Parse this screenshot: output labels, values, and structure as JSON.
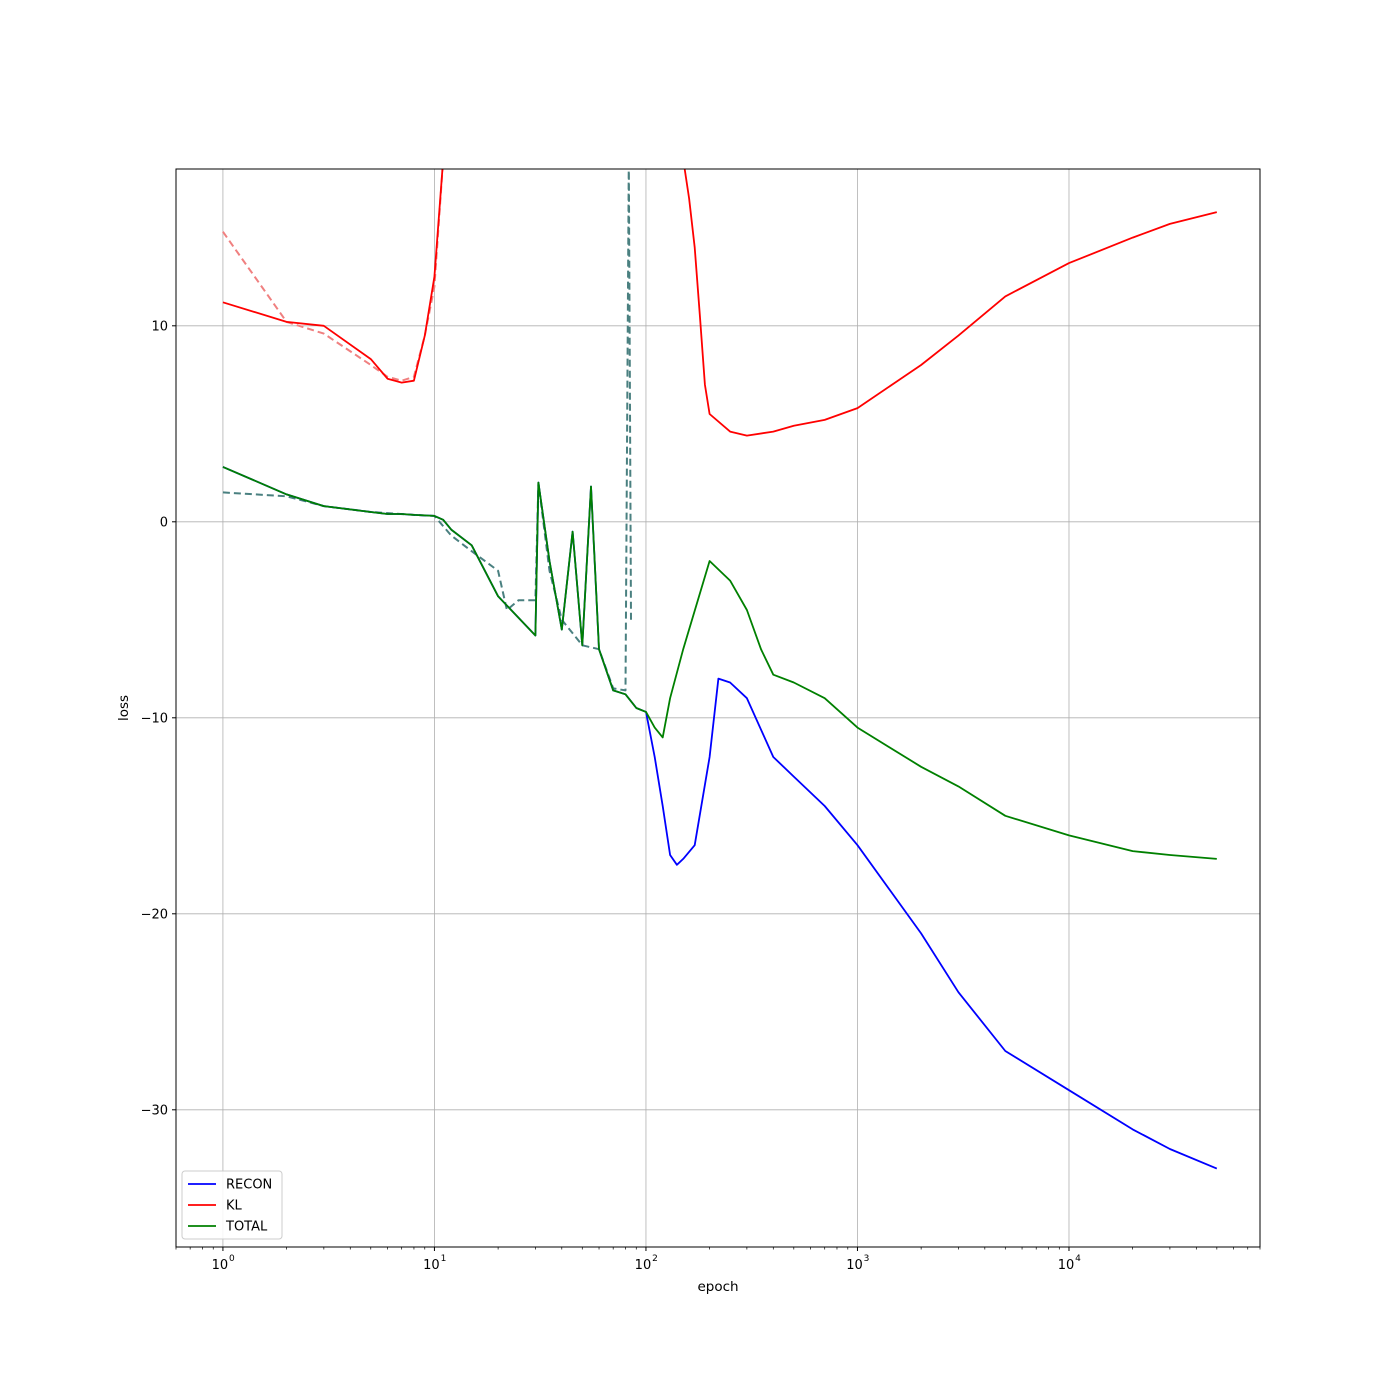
{
  "chart_data": {
    "type": "line",
    "xscale": "log",
    "xlabel": "epoch",
    "ylabel": "loss",
    "xlim": [
      0.6,
      80000
    ],
    "ylim": [
      -37,
      18
    ],
    "grid": true,
    "legend_location": "lower-left",
    "x_ticks": [
      1,
      10,
      100,
      1000,
      10000
    ],
    "x_tick_labels": [
      "10",
      "10",
      "10",
      "10",
      "10"
    ],
    "x_tick_exponents": [
      "0",
      "1",
      "2",
      "3",
      "4"
    ],
    "y_ticks": [
      10,
      0,
      -10,
      -20,
      -30
    ],
    "y_tick_labels": [
      "10",
      "0",
      "−10",
      "−20",
      "−30"
    ],
    "series": [
      {
        "name": "RECON",
        "color": "#0000ff",
        "style": "solid",
        "x": [
          1,
          2,
          3,
          5,
          6,
          7,
          8,
          10,
          11,
          12,
          15,
          20,
          30,
          31,
          35,
          40,
          45,
          50,
          55,
          60,
          70,
          80,
          90,
          100,
          110,
          120,
          130,
          140,
          150,
          170,
          200,
          220,
          250,
          300,
          400,
          500,
          700,
          1000,
          2000,
          3000,
          5000,
          10000,
          20000,
          30000,
          50000
        ],
        "y": [
          2.8,
          1.4,
          0.8,
          0.5,
          0.4,
          0.4,
          0.35,
          0.3,
          0.1,
          -0.4,
          -1.2,
          -3.8,
          -5.8,
          2.0,
          -2.0,
          -5.5,
          -0.5,
          -6.3,
          1.8,
          -6.5,
          -8.6,
          -8.8,
          -9.5,
          -9.7,
          -12.0,
          -14.5,
          -17.0,
          -17.5,
          -17.2,
          -16.5,
          -12.0,
          -8.0,
          -8.2,
          -9.0,
          -12.0,
          -13.0,
          -14.5,
          -16.5,
          -21.0,
          -24.0,
          -27.0,
          -29.0,
          -31.0,
          -32.0,
          -33.0
        ]
      },
      {
        "name": "KL",
        "color": "#ff0000",
        "style": "solid",
        "x": [
          1,
          2,
          3,
          5,
          6,
          7,
          8,
          9,
          10,
          11,
          150,
          160,
          170,
          180,
          190,
          200,
          250,
          300,
          400,
          500,
          700,
          1000,
          2000,
          3000,
          5000,
          10000,
          20000,
          30000,
          50000
        ],
        "y": [
          11.2,
          10.2,
          10.0,
          8.3,
          7.3,
          7.1,
          7.2,
          9.5,
          12.5,
          18.5,
          18.5,
          16.5,
          14.0,
          10.5,
          7.0,
          5.5,
          4.6,
          4.4,
          4.6,
          4.9,
          5.2,
          5.8,
          8.0,
          9.5,
          11.5,
          13.2,
          14.5,
          15.2,
          15.8
        ]
      },
      {
        "name": "TOTAL",
        "color": "#008000",
        "style": "solid",
        "x": [
          1,
          2,
          3,
          5,
          6,
          7,
          8,
          10,
          11,
          12,
          15,
          20,
          30,
          31,
          35,
          40,
          45,
          50,
          55,
          60,
          70,
          80,
          90,
          100,
          110,
          120,
          130,
          150,
          200,
          250,
          300,
          350,
          400,
          500,
          700,
          1000,
          2000,
          3000,
          5000,
          10000,
          20000,
          30000,
          50000
        ],
        "y": [
          2.8,
          1.4,
          0.8,
          0.5,
          0.4,
          0.4,
          0.35,
          0.3,
          0.1,
          -0.4,
          -1.2,
          -3.8,
          -5.8,
          2.0,
          -2.0,
          -5.5,
          -0.5,
          -6.3,
          1.8,
          -6.5,
          -8.6,
          -8.8,
          -9.5,
          -9.7,
          -10.5,
          -11.0,
          -9.0,
          -6.5,
          -2.0,
          -3.0,
          -4.5,
          -6.5,
          -7.8,
          -8.2,
          -9.0,
          -10.5,
          -12.5,
          -13.5,
          -15.0,
          -16.0,
          -16.8,
          -17.0,
          -17.2
        ]
      },
      {
        "name": "",
        "color": "#f08080",
        "style": "dashed",
        "x": [
          1,
          2,
          3,
          5,
          6,
          7,
          8,
          9,
          10,
          11
        ],
        "y": [
          14.8,
          10.2,
          9.6,
          8.0,
          7.4,
          7.2,
          7.4,
          9.5,
          12.0,
          18.5
        ]
      },
      {
        "name": "",
        "color": "#4a8080",
        "style": "dashed",
        "x": [
          1,
          2,
          3,
          5,
          8,
          10,
          12,
          15,
          20,
          22,
          25,
          30,
          31,
          35,
          40,
          50,
          60,
          70,
          80,
          83,
          85
        ],
        "y": [
          1.5,
          1.3,
          0.8,
          0.5,
          0.35,
          0.3,
          -0.7,
          -1.5,
          -2.5,
          -4.5,
          -4.0,
          -4.0,
          2.0,
          -2.5,
          -5.0,
          -6.3,
          -6.5,
          -8.5,
          -8.6,
          18.5,
          -5.0
        ]
      }
    ]
  }
}
